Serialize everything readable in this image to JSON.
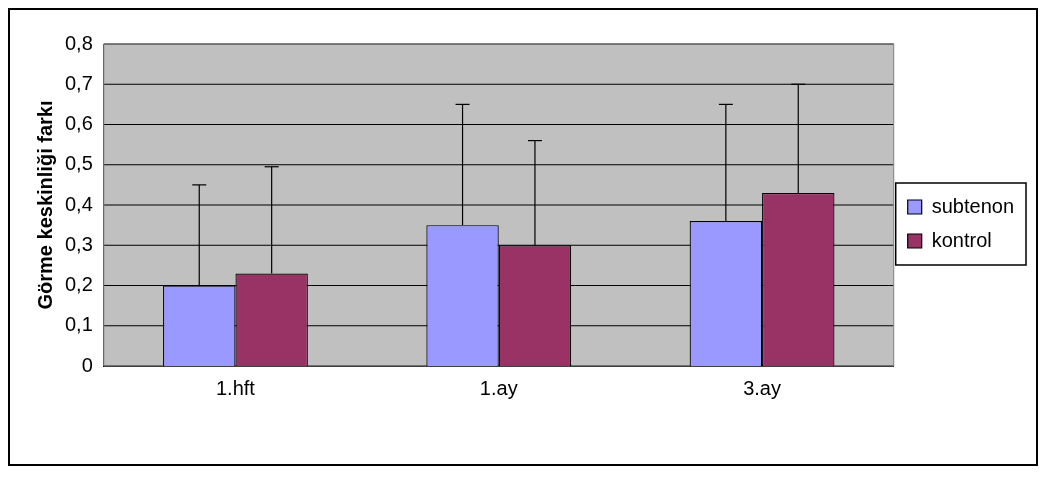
{
  "chart_data": {
    "type": "bar",
    "ylabel": "Görme keskinliği farkı",
    "categories": [
      "1.hft",
      "1.ay",
      "3.ay"
    ],
    "series": [
      {
        "name": "subtenon",
        "color": "#9999ff",
        "values": [
          0.2,
          0.35,
          0.36
        ],
        "errors": [
          [
            0.2,
            0.45
          ],
          [
            0.35,
            0.65
          ],
          [
            0.36,
            0.65
          ]
        ]
      },
      {
        "name": "kontrol",
        "color": "#993366",
        "values": [
          0.23,
          0.3,
          0.43
        ],
        "errors": [
          [
            0.23,
            0.495
          ],
          [
            0.3,
            0.56
          ],
          [
            0.43,
            0.7
          ]
        ]
      }
    ],
    "ylim": [
      0,
      0.8
    ],
    "yticks": [
      {
        "value": 0,
        "label": "0"
      },
      {
        "value": 0.1,
        "label": "0,1"
      },
      {
        "value": 0.2,
        "label": "0,2"
      },
      {
        "value": 0.3,
        "label": "0,3"
      },
      {
        "value": 0.4,
        "label": "0,4"
      },
      {
        "value": 0.5,
        "label": "0,5"
      },
      {
        "value": 0.6,
        "label": "0,6"
      },
      {
        "value": 0.7,
        "label": "0,7"
      },
      {
        "value": 0.8,
        "label": "0,8"
      }
    ],
    "grid": "y",
    "legend": "right"
  }
}
